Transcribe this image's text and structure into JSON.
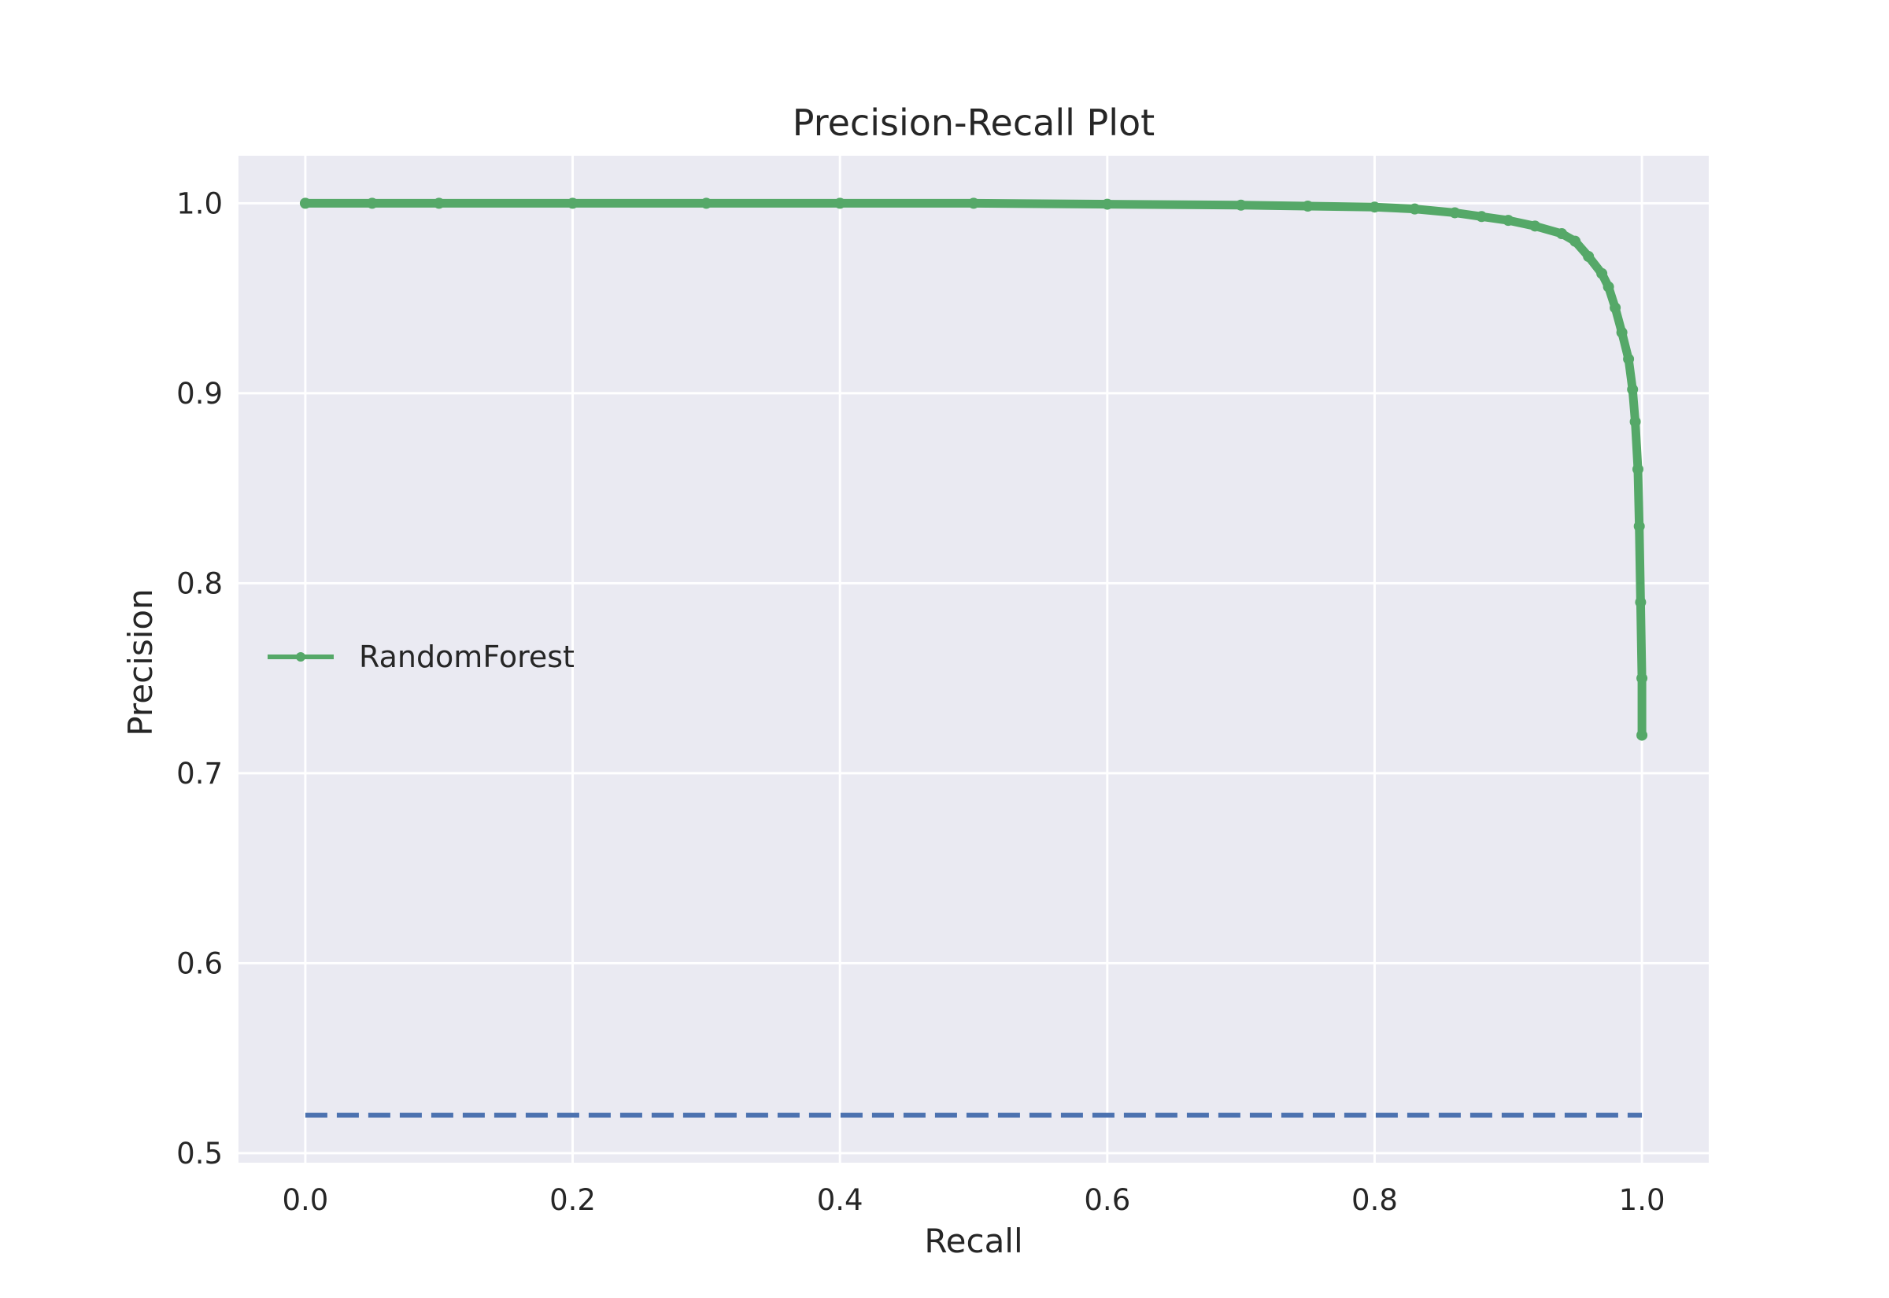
{
  "chart_data": {
    "type": "line",
    "title": "Precision-Recall Plot",
    "xlabel": "Recall",
    "ylabel": "Precision",
    "xlim": [
      -0.05,
      1.05
    ],
    "ylim": [
      0.495,
      1.025
    ],
    "xticks": [
      0.0,
      0.2,
      0.4,
      0.6,
      0.8,
      1.0
    ],
    "xtick_labels": [
      "0.0",
      "0.2",
      "0.4",
      "0.6",
      "0.8",
      "1.0"
    ],
    "yticks": [
      0.5,
      0.6,
      0.7,
      0.8,
      0.9,
      1.0
    ],
    "ytick_labels": [
      "0.5",
      "0.6",
      "0.7",
      "0.8",
      "0.9",
      "1.0"
    ],
    "grid": true,
    "legend_position": "center-left",
    "background_color": "#eaeaf2",
    "grid_color": "#ffffff",
    "series": [
      {
        "name": "RandomForest",
        "style": "solid-with-markers",
        "color": "#55a868",
        "x": [
          0.0,
          0.05,
          0.1,
          0.2,
          0.3,
          0.4,
          0.5,
          0.6,
          0.7,
          0.75,
          0.8,
          0.83,
          0.86,
          0.88,
          0.9,
          0.92,
          0.94,
          0.95,
          0.96,
          0.97,
          0.975,
          0.98,
          0.985,
          0.99,
          0.993,
          0.995,
          0.997,
          0.998,
          0.999,
          1.0,
          1.0
        ],
        "y": [
          1.0,
          1.0,
          1.0,
          1.0,
          1.0,
          1.0,
          1.0,
          0.9995,
          0.999,
          0.9985,
          0.998,
          0.997,
          0.995,
          0.993,
          0.991,
          0.988,
          0.984,
          0.98,
          0.972,
          0.963,
          0.956,
          0.945,
          0.932,
          0.918,
          0.902,
          0.885,
          0.86,
          0.83,
          0.79,
          0.75,
          0.72
        ]
      },
      {
        "style": "dashed",
        "color": "#4c72b0",
        "x": [
          0.0,
          1.0
        ],
        "y": [
          0.52,
          0.52
        ]
      }
    ]
  }
}
